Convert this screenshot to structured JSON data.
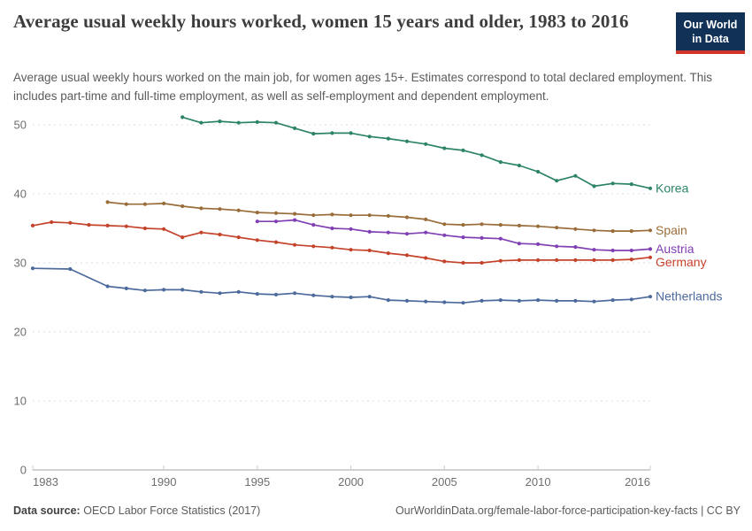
{
  "header": {
    "title": "Average usual weekly hours worked, women 15 years and older, 1983 to 2016",
    "subtitle": "Average usual weekly hours worked on the main job, for women ages 15+. Estimates correspond to total declared employment. This includes part-time and full-time employment, as well as self-employment and dependent employment.",
    "logo": {
      "line1": "Our World",
      "line2": "in Data",
      "bg_color": "#123156",
      "accent_color": "#d0352c"
    }
  },
  "footer": {
    "datasource_label": "Data source:",
    "datasource_value": "OECD Labor Force Statistics (2017)",
    "link_text": "OurWorldinData.org/female-labor-force-participation-key-facts | CC BY"
  },
  "theme": {
    "grid_color": "#dddddd",
    "axis_color": "#a3a3a3",
    "tick_color": "#cccccc",
    "tick_text_color": "#6e6e6e"
  },
  "chart_data": {
    "type": "line",
    "title": "Average usual weekly hours worked, women 15 years and older, 1983 to 2016",
    "xlabel": "",
    "ylabel": "",
    "xlim": [
      1983,
      2016
    ],
    "ylim": [
      0,
      52
    ],
    "x_ticks": [
      1983,
      1990,
      1995,
      2000,
      2005,
      2010,
      2016
    ],
    "y_ticks": [
      0,
      10,
      20,
      30,
      40,
      50
    ],
    "grid": "dashed-horizontal",
    "legend_position": "end-of-line-labels",
    "series": [
      {
        "name": "Korea",
        "color": "#2C8465",
        "start_year": 1991,
        "values": [
          51.1,
          50.3,
          50.5,
          50.3,
          50.4,
          50.3,
          49.5,
          48.7,
          48.8,
          48.8,
          48.3,
          48.0,
          47.6,
          47.2,
          46.6,
          46.3,
          45.6,
          44.6,
          44.1,
          43.2,
          41.9,
          42.6,
          41.1,
          41.5,
          41.4,
          40.8
        ]
      },
      {
        "name": "Spain",
        "color": "#996D39",
        "start_year": 1987,
        "values": [
          38.8,
          38.5,
          38.5,
          38.6,
          38.2,
          37.9,
          37.8,
          37.6,
          37.3,
          37.2,
          37.1,
          36.9,
          37.0,
          36.9,
          36.9,
          36.8,
          36.6,
          36.3,
          35.6,
          35.5,
          35.6,
          35.5,
          35.4,
          35.3,
          35.1,
          34.9,
          34.7,
          34.6,
          34.6,
          34.7
        ]
      },
      {
        "name": "Austria",
        "color": "#8040B4",
        "start_year": 1995,
        "values": [
          36.0,
          36.0,
          36.2,
          35.5,
          35.0,
          34.9,
          34.5,
          34.4,
          34.2,
          34.4,
          34.0,
          33.7,
          33.6,
          33.5,
          32.8,
          32.7,
          32.4,
          32.3,
          31.9,
          31.8,
          31.8,
          32.0
        ]
      },
      {
        "name": "Germany",
        "color": "#C4432B",
        "start_year": 1983,
        "values": [
          35.4,
          35.9,
          35.8,
          35.5,
          35.4,
          35.3,
          35.0,
          34.9,
          33.7,
          34.4,
          34.1,
          33.7,
          33.3,
          33.0,
          32.6,
          32.4,
          32.2,
          31.9,
          31.8,
          31.4,
          31.1,
          30.7,
          30.2,
          30.0,
          30.0,
          30.3,
          30.4,
          30.4,
          30.4,
          30.4,
          30.4,
          30.4,
          30.5,
          30.8
        ]
      },
      {
        "name": "Netherlands",
        "color": "#4C6A9C",
        "start_year": 1983,
        "years": [
          1983,
          1985,
          1987,
          1988,
          1989,
          1990,
          1991,
          1992,
          1993,
          1994,
          1995,
          1996,
          1997,
          1998,
          1999,
          2000,
          2001,
          2002,
          2003,
          2004,
          2005,
          2006,
          2007,
          2008,
          2009,
          2010,
          2011,
          2012,
          2013,
          2014,
          2015,
          2016
        ],
        "values": [
          29.2,
          29.1,
          26.6,
          26.3,
          26.0,
          26.1,
          26.1,
          25.8,
          25.6,
          25.8,
          25.5,
          25.4,
          25.6,
          25.3,
          25.1,
          25.0,
          25.1,
          24.6,
          24.5,
          24.4,
          24.3,
          24.2,
          24.5,
          24.6,
          24.5,
          24.6,
          24.5,
          24.5,
          24.4,
          24.6,
          24.7,
          25.1
        ]
      }
    ]
  }
}
